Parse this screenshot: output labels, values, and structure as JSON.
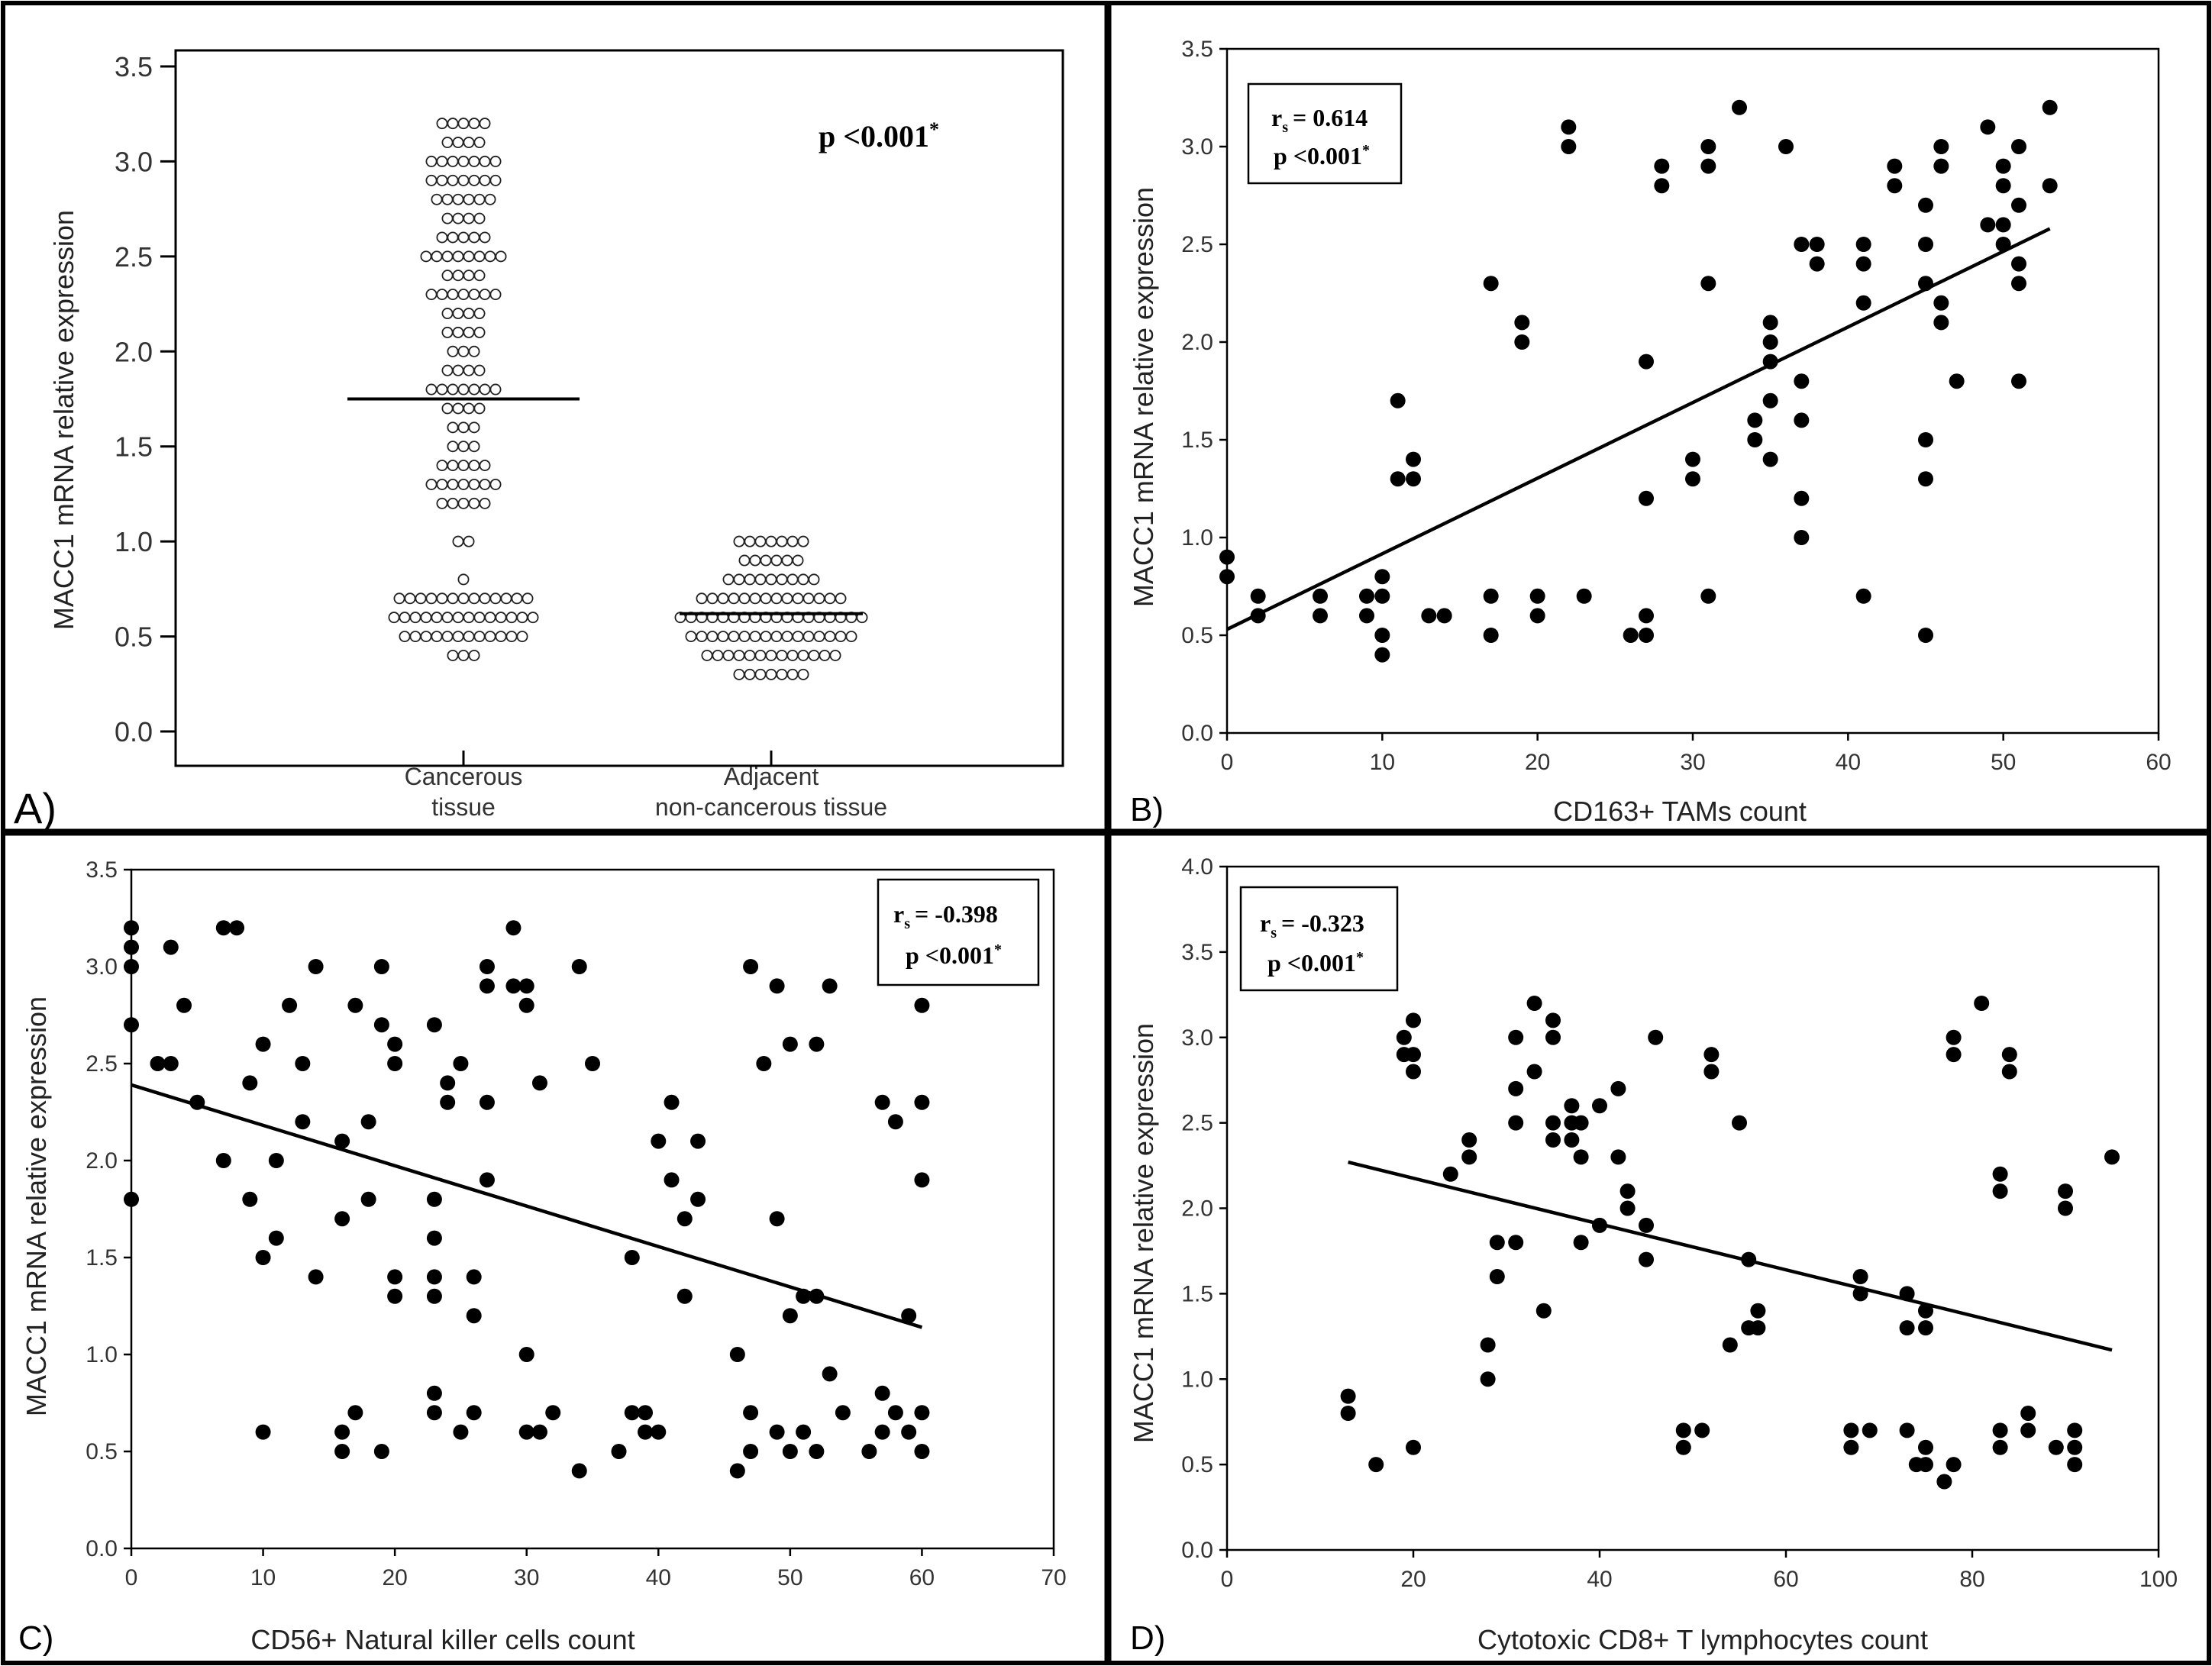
{
  "chart_data": [
    {
      "panel_label": "A)",
      "type": "scatter",
      "subtype": "dot-strip",
      "ylabel": "MACC1 mRNA relative expression",
      "ylim": [
        0,
        3.5
      ],
      "yticks": [
        "0.0",
        "0.5",
        "1.0",
        "1.5",
        "2.0",
        "2.5",
        "3.0",
        "3.5"
      ],
      "categories": [
        {
          "label_lines": [
            "Cancerous",
            "tissue"
          ]
        },
        {
          "label_lines": [
            "Adjacent",
            "non-cancerous tissue"
          ]
        }
      ],
      "stat_text": "p <0.001",
      "stat_sup": "*",
      "marker": "open",
      "groups": [
        {
          "median": 1.75,
          "rows": [
            [
              3.2,
              5
            ],
            [
              3.1,
              4
            ],
            [
              3.0,
              7
            ],
            [
              2.9,
              7
            ],
            [
              2.8,
              6
            ],
            [
              2.7,
              4
            ],
            [
              2.6,
              5
            ],
            [
              2.5,
              8
            ],
            [
              2.4,
              4
            ],
            [
              2.3,
              7
            ],
            [
              2.2,
              4
            ],
            [
              2.1,
              4
            ],
            [
              2.0,
              3
            ],
            [
              1.9,
              4
            ],
            [
              1.8,
              7
            ],
            [
              1.7,
              4
            ],
            [
              1.6,
              3
            ],
            [
              1.5,
              3
            ],
            [
              1.4,
              5
            ],
            [
              1.3,
              7
            ],
            [
              1.2,
              5
            ],
            [
              1.0,
              2
            ],
            [
              0.8,
              1
            ],
            [
              0.7,
              13
            ],
            [
              0.6,
              14
            ],
            [
              0.5,
              12
            ],
            [
              0.4,
              3
            ]
          ]
        },
        {
          "median": 0.62,
          "rows": [
            [
              1.0,
              7
            ],
            [
              0.9,
              6
            ],
            [
              0.8,
              9
            ],
            [
              0.7,
              14
            ],
            [
              0.6,
              18
            ],
            [
              0.5,
              16
            ],
            [
              0.4,
              13
            ],
            [
              0.3,
              7
            ]
          ]
        }
      ]
    },
    {
      "panel_label": "B)",
      "type": "scatter",
      "xlabel": "CD163+ TAMs count",
      "ylabel": "MACC1 mRNA relative expression",
      "xlim": [
        0,
        60
      ],
      "ylim": [
        0,
        3.5
      ],
      "xticks": [
        "0",
        "10",
        "20",
        "30",
        "40",
        "50",
        "60"
      ],
      "yticks": [
        "0.0",
        "0.5",
        "1.0",
        "1.5",
        "2.0",
        "2.5",
        "3.0",
        "3.5"
      ],
      "stat_r_prefix": "r",
      "stat_r_sub": "s",
      "stat_r_value": "= 0.614",
      "stat_p_text": "p <0.001",
      "stat_p_sup": "*",
      "fit_line": [
        [
          0,
          0.53
        ],
        [
          53,
          2.58
        ]
      ],
      "points": [
        [
          0,
          0.9
        ],
        [
          0,
          0.8
        ],
        [
          2,
          0.7
        ],
        [
          2,
          0.6
        ],
        [
          6,
          0.7
        ],
        [
          6,
          0.6
        ],
        [
          9,
          0.7
        ],
        [
          9,
          0.6
        ],
        [
          10,
          0.8
        ],
        [
          10,
          0.7
        ],
        [
          10,
          0.5
        ],
        [
          10,
          0.4
        ],
        [
          11,
          1.7
        ],
        [
          11,
          1.3
        ],
        [
          12,
          1.4
        ],
        [
          12,
          1.3
        ],
        [
          13,
          0.6
        ],
        [
          14,
          0.6
        ],
        [
          17,
          2.3
        ],
        [
          17,
          0.7
        ],
        [
          17,
          0.5
        ],
        [
          19,
          2.1
        ],
        [
          19,
          2.0
        ],
        [
          20,
          0.7
        ],
        [
          20,
          0.6
        ],
        [
          22,
          3.1
        ],
        [
          22,
          3.0
        ],
        [
          23,
          0.7
        ],
        [
          26,
          0.5
        ],
        [
          27,
          1.9
        ],
        [
          27,
          1.2
        ],
        [
          27,
          0.6
        ],
        [
          27,
          0.5
        ],
        [
          28,
          2.9
        ],
        [
          28,
          2.8
        ],
        [
          30,
          1.4
        ],
        [
          30,
          1.3
        ],
        [
          31,
          3.0
        ],
        [
          31,
          2.9
        ],
        [
          31,
          2.3
        ],
        [
          31,
          0.7
        ],
        [
          33,
          3.2
        ],
        [
          34,
          1.6
        ],
        [
          34,
          1.5
        ],
        [
          35,
          2.1
        ],
        [
          35,
          2.0
        ],
        [
          35,
          1.9
        ],
        [
          35,
          1.7
        ],
        [
          35,
          1.4
        ],
        [
          36,
          3.0
        ],
        [
          37,
          2.5
        ],
        [
          37,
          1.8
        ],
        [
          37,
          1.6
        ],
        [
          37,
          1.2
        ],
        [
          37,
          1.0
        ],
        [
          38,
          2.5
        ],
        [
          38,
          2.4
        ],
        [
          41,
          2.5
        ],
        [
          41,
          2.4
        ],
        [
          41,
          2.2
        ],
        [
          41,
          0.7
        ],
        [
          43,
          2.9
        ],
        [
          43,
          2.8
        ],
        [
          45,
          2.7
        ],
        [
          45,
          2.5
        ],
        [
          45,
          2.3
        ],
        [
          45,
          1.5
        ],
        [
          45,
          1.3
        ],
        [
          45,
          0.5
        ],
        [
          46,
          3.0
        ],
        [
          46,
          2.9
        ],
        [
          46,
          2.2
        ],
        [
          46,
          2.1
        ],
        [
          47,
          1.8
        ],
        [
          49,
          3.1
        ],
        [
          49,
          2.6
        ],
        [
          50,
          2.9
        ],
        [
          50,
          2.8
        ],
        [
          50,
          2.6
        ],
        [
          50,
          2.5
        ],
        [
          51,
          3.0
        ],
        [
          51,
          2.7
        ],
        [
          51,
          2.4
        ],
        [
          51,
          2.3
        ],
        [
          51,
          1.8
        ],
        [
          53,
          3.2
        ],
        [
          53,
          2.8
        ]
      ]
    },
    {
      "panel_label": "C)",
      "type": "scatter",
      "xlabel": "CD56+ Natural killer cells count",
      "ylabel": "MACC1 mRNA relative expression",
      "xlim": [
        0,
        70
      ],
      "ylim": [
        0,
        3.5
      ],
      "xticks": [
        "0",
        "10",
        "20",
        "30",
        "40",
        "50",
        "60",
        "70"
      ],
      "yticks": [
        "0.0",
        "0.5",
        "1.0",
        "1.5",
        "2.0",
        "2.5",
        "3.0",
        "3.5"
      ],
      "stat_r_prefix": "r",
      "stat_r_sub": "s",
      "stat_r_value": "= -0.398",
      "stat_p_text": "p <0.001",
      "stat_p_sup": "*",
      "fit_line": [
        [
          0,
          2.39
        ],
        [
          60,
          1.14
        ]
      ],
      "points": [
        [
          0,
          3.2
        ],
        [
          0,
          3.1
        ],
        [
          0,
          3.0
        ],
        [
          0,
          2.7
        ],
        [
          0,
          1.8
        ],
        [
          2,
          2.5
        ],
        [
          3,
          3.1
        ],
        [
          3,
          2.5
        ],
        [
          4,
          2.8
        ],
        [
          5,
          2.3
        ],
        [
          7,
          3.2
        ],
        [
          7,
          2.0
        ],
        [
          8,
          3.2
        ],
        [
          9,
          2.4
        ],
        [
          9,
          1.8
        ],
        [
          10,
          2.6
        ],
        [
          10,
          1.5
        ],
        [
          10,
          0.6
        ],
        [
          11,
          2.0
        ],
        [
          11,
          1.6
        ],
        [
          12,
          2.8
        ],
        [
          13,
          2.5
        ],
        [
          13,
          2.2
        ],
        [
          14,
          3.0
        ],
        [
          14,
          1.4
        ],
        [
          16,
          2.1
        ],
        [
          16,
          1.7
        ],
        [
          16,
          0.6
        ],
        [
          16,
          0.5
        ],
        [
          17,
          2.8
        ],
        [
          17,
          0.7
        ],
        [
          18,
          2.2
        ],
        [
          18,
          1.8
        ],
        [
          19,
          3.0
        ],
        [
          19,
          2.7
        ],
        [
          19,
          0.5
        ],
        [
          20,
          2.6
        ],
        [
          20,
          2.5
        ],
        [
          20,
          1.4
        ],
        [
          20,
          1.3
        ],
        [
          23,
          2.7
        ],
        [
          23,
          1.8
        ],
        [
          23,
          1.6
        ],
        [
          23,
          1.4
        ],
        [
          23,
          1.3
        ],
        [
          23,
          0.8
        ],
        [
          23,
          0.7
        ],
        [
          24,
          2.4
        ],
        [
          24,
          2.3
        ],
        [
          25,
          2.5
        ],
        [
          25,
          0.6
        ],
        [
          26,
          1.4
        ],
        [
          26,
          1.2
        ],
        [
          26,
          0.7
        ],
        [
          27,
          3.0
        ],
        [
          27,
          2.9
        ],
        [
          27,
          2.3
        ],
        [
          27,
          1.9
        ],
        [
          29,
          3.2
        ],
        [
          29,
          2.9
        ],
        [
          30,
          2.9
        ],
        [
          30,
          2.8
        ],
        [
          30,
          1.0
        ],
        [
          30,
          0.6
        ],
        [
          31,
          2.4
        ],
        [
          31,
          0.6
        ],
        [
          32,
          0.7
        ],
        [
          34,
          3.0
        ],
        [
          34,
          0.4
        ],
        [
          35,
          2.5
        ],
        [
          37,
          0.5
        ],
        [
          38,
          1.5
        ],
        [
          38,
          0.7
        ],
        [
          39,
          0.7
        ],
        [
          39,
          0.6
        ],
        [
          40,
          2.1
        ],
        [
          40,
          0.6
        ],
        [
          41,
          2.3
        ],
        [
          41,
          1.9
        ],
        [
          42,
          1.7
        ],
        [
          42,
          1.3
        ],
        [
          43,
          2.1
        ],
        [
          43,
          1.8
        ],
        [
          46,
          1.0
        ],
        [
          46,
          0.4
        ],
        [
          47,
          3.0
        ],
        [
          47,
          0.7
        ],
        [
          47,
          0.5
        ],
        [
          48,
          2.5
        ],
        [
          49,
          2.9
        ],
        [
          49,
          1.7
        ],
        [
          49,
          0.6
        ],
        [
          50,
          2.6
        ],
        [
          50,
          1.2
        ],
        [
          50,
          0.5
        ],
        [
          51,
          1.3
        ],
        [
          51,
          0.6
        ],
        [
          52,
          2.6
        ],
        [
          52,
          1.3
        ],
        [
          52,
          0.5
        ],
        [
          53,
          2.9
        ],
        [
          53,
          0.9
        ],
        [
          54,
          0.7
        ],
        [
          56,
          0.5
        ],
        [
          57,
          2.3
        ],
        [
          57,
          0.8
        ],
        [
          57,
          0.6
        ],
        [
          58,
          2.2
        ],
        [
          58,
          0.7
        ],
        [
          59,
          1.2
        ],
        [
          59,
          0.6
        ],
        [
          60,
          2.8
        ],
        [
          60,
          2.3
        ],
        [
          60,
          1.9
        ],
        [
          60,
          0.7
        ],
        [
          60,
          0.5
        ]
      ]
    },
    {
      "panel_label": "D)",
      "type": "scatter",
      "xlabel": "Cytotoxic CD8+ T lymphocytes count",
      "ylabel": "MACC1 mRNA relative expression",
      "xlim": [
        0,
        100
      ],
      "ylim": [
        0,
        4.0
      ],
      "xticks": [
        "0",
        "20",
        "40",
        "60",
        "80",
        "100"
      ],
      "yticks": [
        "0.0",
        "0.5",
        "1.0",
        "1.5",
        "2.0",
        "2.5",
        "3.0",
        "3.5",
        "4.0"
      ],
      "stat_r_prefix": "r",
      "stat_r_sub": "s",
      "stat_r_value": "= -0.323",
      "stat_p_text": "p <0.001",
      "stat_p_sup": "*",
      "fit_line": [
        [
          13,
          2.27
        ],
        [
          95,
          1.17
        ]
      ],
      "points": [
        [
          13,
          0.9
        ],
        [
          13,
          0.8
        ],
        [
          16,
          0.5
        ],
        [
          19,
          3.0
        ],
        [
          19,
          2.9
        ],
        [
          20,
          3.1
        ],
        [
          20,
          2.9
        ],
        [
          20,
          2.8
        ],
        [
          20,
          0.6
        ],
        [
          24,
          2.2
        ],
        [
          26,
          2.4
        ],
        [
          26,
          2.3
        ],
        [
          28,
          1.2
        ],
        [
          28,
          1.0
        ],
        [
          29,
          1.8
        ],
        [
          29,
          1.6
        ],
        [
          31,
          3.0
        ],
        [
          31,
          2.7
        ],
        [
          31,
          2.5
        ],
        [
          31,
          1.8
        ],
        [
          33,
          3.2
        ],
        [
          33,
          2.8
        ],
        [
          34,
          1.4
        ],
        [
          35,
          3.1
        ],
        [
          35,
          3.0
        ],
        [
          35,
          2.5
        ],
        [
          35,
          2.4
        ],
        [
          37,
          2.6
        ],
        [
          37,
          2.5
        ],
        [
          37,
          2.4
        ],
        [
          38,
          2.5
        ],
        [
          38,
          2.3
        ],
        [
          38,
          1.8
        ],
        [
          40,
          2.6
        ],
        [
          40,
          1.9
        ],
        [
          42,
          2.7
        ],
        [
          42,
          2.3
        ],
        [
          43,
          2.1
        ],
        [
          43,
          2.0
        ],
        [
          45,
          1.9
        ],
        [
          45,
          1.7
        ],
        [
          46,
          3.0
        ],
        [
          49,
          0.7
        ],
        [
          49,
          0.6
        ],
        [
          51,
          0.7
        ],
        [
          52,
          2.9
        ],
        [
          52,
          2.8
        ],
        [
          54,
          1.2
        ],
        [
          55,
          2.5
        ],
        [
          56,
          1.7
        ],
        [
          56,
          1.3
        ],
        [
          57,
          1.4
        ],
        [
          57,
          1.3
        ],
        [
          67,
          0.7
        ],
        [
          67,
          0.6
        ],
        [
          68,
          1.6
        ],
        [
          68,
          1.5
        ],
        [
          69,
          0.7
        ],
        [
          73,
          1.5
        ],
        [
          73,
          1.3
        ],
        [
          73,
          0.7
        ],
        [
          74,
          0.5
        ],
        [
          75,
          1.4
        ],
        [
          75,
          1.3
        ],
        [
          75,
          0.6
        ],
        [
          75,
          0.5
        ],
        [
          77,
          0.4
        ],
        [
          78,
          3.0
        ],
        [
          78,
          2.9
        ],
        [
          78,
          0.5
        ],
        [
          81,
          3.2
        ],
        [
          83,
          2.2
        ],
        [
          83,
          2.1
        ],
        [
          83,
          0.7
        ],
        [
          83,
          0.6
        ],
        [
          84,
          2.9
        ],
        [
          84,
          2.8
        ],
        [
          86,
          0.8
        ],
        [
          86,
          0.7
        ],
        [
          89,
          0.6
        ],
        [
          90,
          2.1
        ],
        [
          90,
          2.0
        ],
        [
          91,
          0.7
        ],
        [
          91,
          0.6
        ],
        [
          91,
          0.5
        ],
        [
          95,
          2.3
        ]
      ]
    }
  ]
}
